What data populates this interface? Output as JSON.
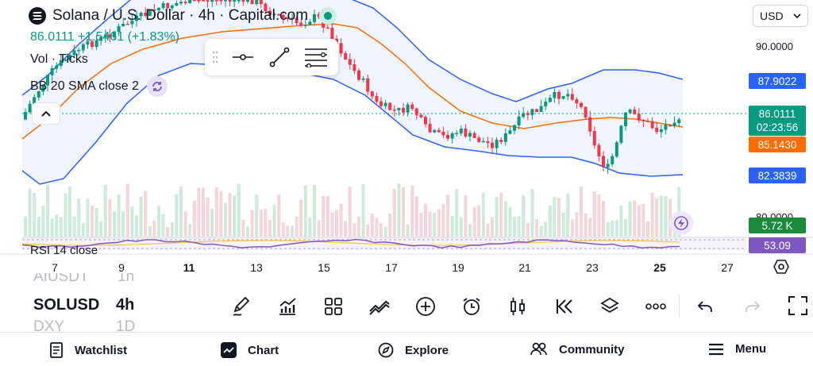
{
  "header": {
    "symbol_title": "Solana / U.S. Dollar · 4h · Capital.com",
    "price_line": "86.0111  +1.5461 (+1.83%)",
    "vol_label": "Vol · Ticks",
    "bb_label": "BB 20 SMA close 2",
    "currency": "USD"
  },
  "price_axis": {
    "ticks": [
      "90.0000",
      "80.0000"
    ]
  },
  "price_tags": {
    "bb_upper": "87.9022",
    "last_price": "86.0111",
    "countdown": "02:23:56",
    "bb_basis": "85.1430",
    "bb_lower": "82.3839",
    "volume": "5.72 K",
    "rsi": "53.09"
  },
  "rsi": {
    "label": "RSI 14 close"
  },
  "time_axis": {
    "labels": [
      {
        "text": "7",
        "bold": false
      },
      {
        "text": "9",
        "bold": false
      },
      {
        "text": "11",
        "bold": true
      },
      {
        "text": "13",
        "bold": false
      },
      {
        "text": "15",
        "bold": false
      },
      {
        "text": "17",
        "bold": false
      },
      {
        "text": "19",
        "bold": false
      },
      {
        "text": "21",
        "bold": false
      },
      {
        "text": "23",
        "bold": false
      },
      {
        "text": "25",
        "bold": true
      },
      {
        "text": "27",
        "bold": false
      }
    ]
  },
  "symbols": {
    "prev": "AIUSDT",
    "current": "SOLUSD",
    "next": "DXY",
    "interval_prev": "1h",
    "interval": "4h",
    "interval_next": "1D"
  },
  "toolbar_icons": [
    "pencil-icon",
    "indicators-icon",
    "templates-icon",
    "compare-icon",
    "add-icon",
    "alert-icon",
    "chart-type-icon",
    "replay-icon",
    "layers-icon",
    "more-icon",
    "undo-icon",
    "redo-icon",
    "fullscreen-icon"
  ],
  "nav": {
    "watchlist": "Watchlist",
    "chart": "Chart",
    "explore": "Explore",
    "community": "Community",
    "menu": "Menu"
  },
  "colors": {
    "up": "#089981",
    "down": "#f23645",
    "bb_band": "#2962ff",
    "bb_basis": "#ff6d00",
    "rsi": "#7e57c2",
    "volume_tag": "#1b8a3c"
  },
  "chart_data": {
    "type": "candlestick",
    "interval": "4h",
    "x_labels": [
      "7",
      "9",
      "11",
      "13",
      "15",
      "17",
      "19",
      "21",
      "23",
      "25",
      "27"
    ],
    "y_ticks": [
      90.0,
      80.0
    ],
    "last": 86.0111,
    "change": 1.5461,
    "change_pct": 1.83,
    "bb_upper_last": 87.9022,
    "bb_basis_last": 85.143,
    "bb_lower_last": 82.3839,
    "volume_last": "5.72 K",
    "rsi_last": 53.09
  }
}
